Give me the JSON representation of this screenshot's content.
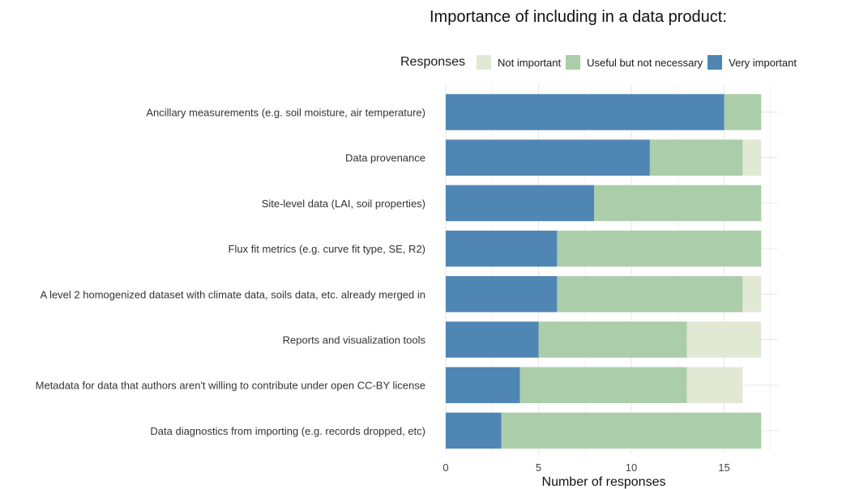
{
  "chart_data": {
    "type": "bar",
    "orientation": "horizontal",
    "stacked": true,
    "title": "Importance of including in a data product:",
    "xlabel": "Number of responses",
    "ylabel": "",
    "xlim": [
      0,
      17.5
    ],
    "xticks": [
      0,
      5,
      10,
      15
    ],
    "grid": true,
    "legend": {
      "title": "Responses",
      "placement": "top",
      "entries": [
        "Not important",
        "Useful but not necessary",
        "Very important"
      ]
    },
    "categories": [
      "Ancillary measurements (e.g. soil moisture, air temperature)",
      "Data provenance",
      "Site-level data (LAI, soil properties)",
      "Flux fit metrics (e.g. curve fit type, SE, R2)",
      "A level 2 homogenized dataset with climate data, soils data, etc. already merged in",
      "Reports and visualization tools",
      "Metadata for data that authors aren't willing to contribute under open CC-BY license",
      "Data diagnostics from importing (e.g. records dropped, etc)"
    ],
    "series": [
      {
        "name": "Very important",
        "color": "#4f86b4",
        "values": [
          15,
          11,
          8,
          6,
          6,
          5,
          4,
          3
        ]
      },
      {
        "name": "Useful but not necessary",
        "color": "#abcdaa",
        "values": [
          2,
          5,
          9,
          11,
          10,
          8,
          9,
          14
        ]
      },
      {
        "name": "Not important",
        "color": "#e1e8d4",
        "values": [
          0,
          1,
          0,
          0,
          1,
          4,
          3,
          0
        ]
      }
    ]
  }
}
